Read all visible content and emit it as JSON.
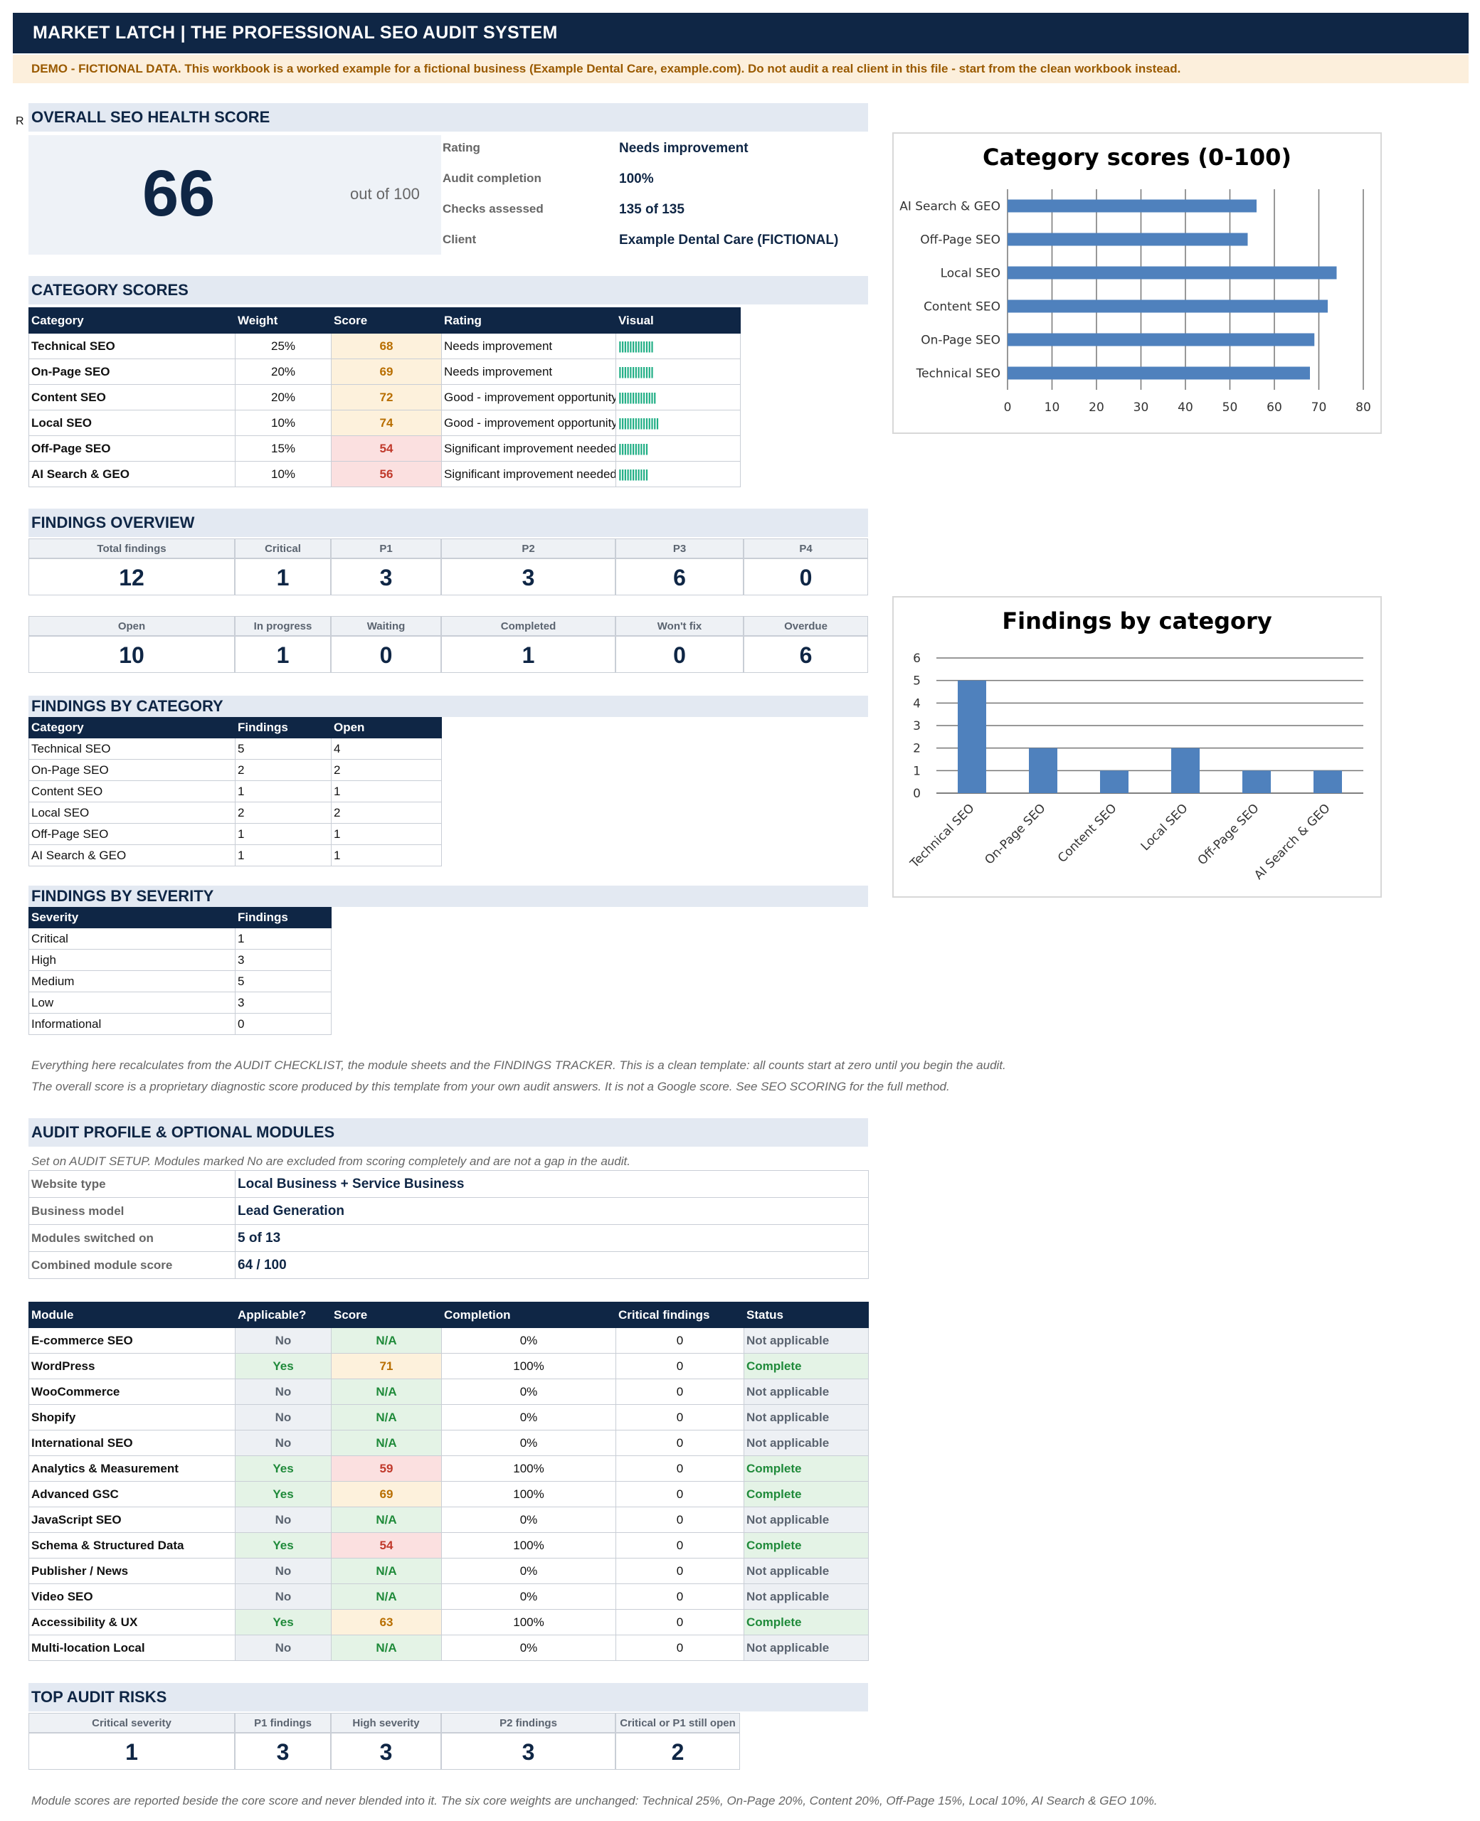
{
  "banner": "MARKET LATCH   |   THE PROFESSIONAL SEO AUDIT SYSTEM",
  "demo_notice": "DEMO - FICTIONAL DATA. This workbook is a worked example for a fictional business (Example Dental Care, example.com). Do not audit a real client in this file - start from the clean workbook instead.",
  "stray_char": "R",
  "health": {
    "title": "OVERALL SEO HEALTH SCORE",
    "score": "66",
    "out_of": "out of 100",
    "rows": [
      {
        "label": "Rating",
        "value": "Needs improvement"
      },
      {
        "label": "Audit completion",
        "value": "100%"
      },
      {
        "label": "Checks assessed",
        "value": "135 of 135"
      },
      {
        "label": "Client",
        "value": "Example Dental Care (FICTIONAL)"
      }
    ]
  },
  "category_scores": {
    "title": "CATEGORY SCORES",
    "headers": [
      "Category",
      "Weight",
      "Score",
      "Rating",
      "Visual"
    ],
    "rows": [
      {
        "category": "Technical SEO",
        "weight": "25%",
        "score": "68",
        "rating": "Needs improvement",
        "visual": "|||||||||||||",
        "tone": "warn"
      },
      {
        "category": "On-Page SEO",
        "weight": "20%",
        "score": "69",
        "rating": "Needs improvement",
        "visual": "|||||||||||||",
        "tone": "warn"
      },
      {
        "category": "Content SEO",
        "weight": "20%",
        "score": "72",
        "rating": "Good - improvement opportunity",
        "visual": "||||||||||||||",
        "tone": "warn"
      },
      {
        "category": "Local SEO",
        "weight": "10%",
        "score": "74",
        "rating": "Good - improvement opportunity",
        "visual": "|||||||||||||||",
        "tone": "warn"
      },
      {
        "category": "Off-Page SEO",
        "weight": "15%",
        "score": "54",
        "rating": "Significant improvement needed",
        "visual": "|||||||||||",
        "tone": "bad"
      },
      {
        "category": "AI Search & GEO",
        "weight": "10%",
        "score": "56",
        "rating": "Significant improvement needed",
        "visual": "|||||||||||",
        "tone": "bad"
      }
    ]
  },
  "findings_overview": {
    "title": "FINDINGS OVERVIEW",
    "row1": [
      {
        "label": "Total findings",
        "value": "12"
      },
      {
        "label": "Critical",
        "value": "1"
      },
      {
        "label": "P1",
        "value": "3"
      },
      {
        "label": "P2",
        "value": "3"
      },
      {
        "label": "P3",
        "value": "6"
      },
      {
        "label": "P4",
        "value": "0"
      }
    ],
    "row2": [
      {
        "label": "Open",
        "value": "10"
      },
      {
        "label": "In progress",
        "value": "1"
      },
      {
        "label": "Waiting",
        "value": "0"
      },
      {
        "label": "Completed",
        "value": "1"
      },
      {
        "label": "Won't fix",
        "value": "0"
      },
      {
        "label": "Overdue",
        "value": "6"
      }
    ]
  },
  "findings_by_category": {
    "title": "FINDINGS BY CATEGORY",
    "headers": [
      "Category",
      "Findings",
      "Open"
    ],
    "rows": [
      [
        "Technical SEO",
        "5",
        "4"
      ],
      [
        "On-Page SEO",
        "2",
        "2"
      ],
      [
        "Content SEO",
        "1",
        "1"
      ],
      [
        "Local SEO",
        "2",
        "2"
      ],
      [
        "Off-Page SEO",
        "1",
        "1"
      ],
      [
        "AI Search & GEO",
        "1",
        "1"
      ]
    ]
  },
  "findings_by_severity": {
    "title": "FINDINGS BY SEVERITY",
    "headers": [
      "Severity",
      "Findings"
    ],
    "rows": [
      [
        "Critical",
        "1"
      ],
      [
        "High",
        "3"
      ],
      [
        "Medium",
        "5"
      ],
      [
        "Low",
        "3"
      ],
      [
        "Informational",
        "0"
      ]
    ]
  },
  "notes": {
    "line1": "Everything here recalculates from the AUDIT CHECKLIST, the module sheets and the FINDINGS TRACKER. This is a clean template: all counts start at zero until you begin the audit.",
    "line2": "The overall score is a proprietary diagnostic score produced by this template from your own audit answers. It is not a Google score. See SEO SCORING for the full method.",
    "footer": "Module scores are reported beside the core score and never blended into it. The six core weights are unchanged: Technical 25%, On-Page 20%, Content 20%, Off-Page 15%, Local 10%, AI Search & GEO 10%."
  },
  "audit_profile": {
    "title": "AUDIT PROFILE & OPTIONAL MODULES",
    "note": "Set on AUDIT SETUP. Modules marked No are excluded from scoring completely and are not a gap in the audit.",
    "rows": [
      {
        "label": "Website type",
        "value": "Local Business + Service Business"
      },
      {
        "label": "Business model",
        "value": "Lead Generation"
      },
      {
        "label": "Modules switched on",
        "value": "5 of 13"
      },
      {
        "label": "Combined module score",
        "value": "64 / 100"
      }
    ]
  },
  "modules": {
    "headers": [
      "Module",
      "Applicable?",
      "Score",
      "Completion",
      "Critical findings",
      "Status"
    ],
    "rows": [
      {
        "module": "E-commerce SEO",
        "applicable": "No",
        "score": "N/A",
        "completion": "0%",
        "critical": "0",
        "status": "Not applicable",
        "tone": "na"
      },
      {
        "module": "WordPress",
        "applicable": "Yes",
        "score": "71",
        "completion": "100%",
        "critical": "0",
        "status": "Complete",
        "tone": "warn"
      },
      {
        "module": "WooCommerce",
        "applicable": "No",
        "score": "N/A",
        "completion": "0%",
        "critical": "0",
        "status": "Not applicable",
        "tone": "na"
      },
      {
        "module": "Shopify",
        "applicable": "No",
        "score": "N/A",
        "completion": "0%",
        "critical": "0",
        "status": "Not applicable",
        "tone": "na"
      },
      {
        "module": "International SEO",
        "applicable": "No",
        "score": "N/A",
        "completion": "0%",
        "critical": "0",
        "status": "Not applicable",
        "tone": "na"
      },
      {
        "module": "Analytics & Measurement",
        "applicable": "Yes",
        "score": "59",
        "completion": "100%",
        "critical": "0",
        "status": "Complete",
        "tone": "bad"
      },
      {
        "module": "Advanced GSC",
        "applicable": "Yes",
        "score": "69",
        "completion": "100%",
        "critical": "0",
        "status": "Complete",
        "tone": "warn"
      },
      {
        "module": "JavaScript SEO",
        "applicable": "No",
        "score": "N/A",
        "completion": "0%",
        "critical": "0",
        "status": "Not applicable",
        "tone": "na"
      },
      {
        "module": "Schema & Structured Data",
        "applicable": "Yes",
        "score": "54",
        "completion": "100%",
        "critical": "0",
        "status": "Complete",
        "tone": "bad"
      },
      {
        "module": "Publisher / News",
        "applicable": "No",
        "score": "N/A",
        "completion": "0%",
        "critical": "0",
        "status": "Not applicable",
        "tone": "na"
      },
      {
        "module": "Video SEO",
        "applicable": "No",
        "score": "N/A",
        "completion": "0%",
        "critical": "0",
        "status": "Not applicable",
        "tone": "na"
      },
      {
        "module": "Accessibility & UX",
        "applicable": "Yes",
        "score": "63",
        "completion": "100%",
        "critical": "0",
        "status": "Complete",
        "tone": "warn"
      },
      {
        "module": "Multi-location Local",
        "applicable": "No",
        "score": "N/A",
        "completion": "0%",
        "critical": "0",
        "status": "Not applicable",
        "tone": "na"
      }
    ]
  },
  "top_risks": {
    "title": "TOP AUDIT RISKS",
    "items": [
      {
        "label": "Critical severity",
        "value": "1"
      },
      {
        "label": "P1 findings",
        "value": "3"
      },
      {
        "label": "High severity",
        "value": "3"
      },
      {
        "label": "P2 findings",
        "value": "3"
      },
      {
        "label": "Critical or P1 still open",
        "value": "2"
      }
    ]
  },
  "chart_data": [
    {
      "type": "bar",
      "orientation": "horizontal",
      "title": "Category scores (0-100)",
      "categories": [
        "AI Search & GEO",
        "Off-Page SEO",
        "Local SEO",
        "Content SEO",
        "On-Page SEO",
        "Technical SEO"
      ],
      "values": [
        56,
        54,
        74,
        72,
        69,
        68
      ],
      "xlim": [
        0,
        80
      ],
      "ticks": [
        "0",
        "10",
        "20",
        "30",
        "40",
        "50",
        "60",
        "70",
        "80"
      ],
      "grid": true,
      "color": "#4f81bd"
    },
    {
      "type": "bar",
      "orientation": "vertical",
      "title": "Findings by category",
      "categories": [
        "Technical SEO",
        "On-Page SEO",
        "Content SEO",
        "Local SEO",
        "Off-Page SEO",
        "AI Search & GEO"
      ],
      "values": [
        5,
        2,
        1,
        2,
        1,
        1
      ],
      "ylim": [
        0,
        6
      ],
      "ticks": [
        "0",
        "1",
        "2",
        "3",
        "4",
        "5",
        "6"
      ],
      "grid": true,
      "color": "#4f81bd"
    }
  ]
}
